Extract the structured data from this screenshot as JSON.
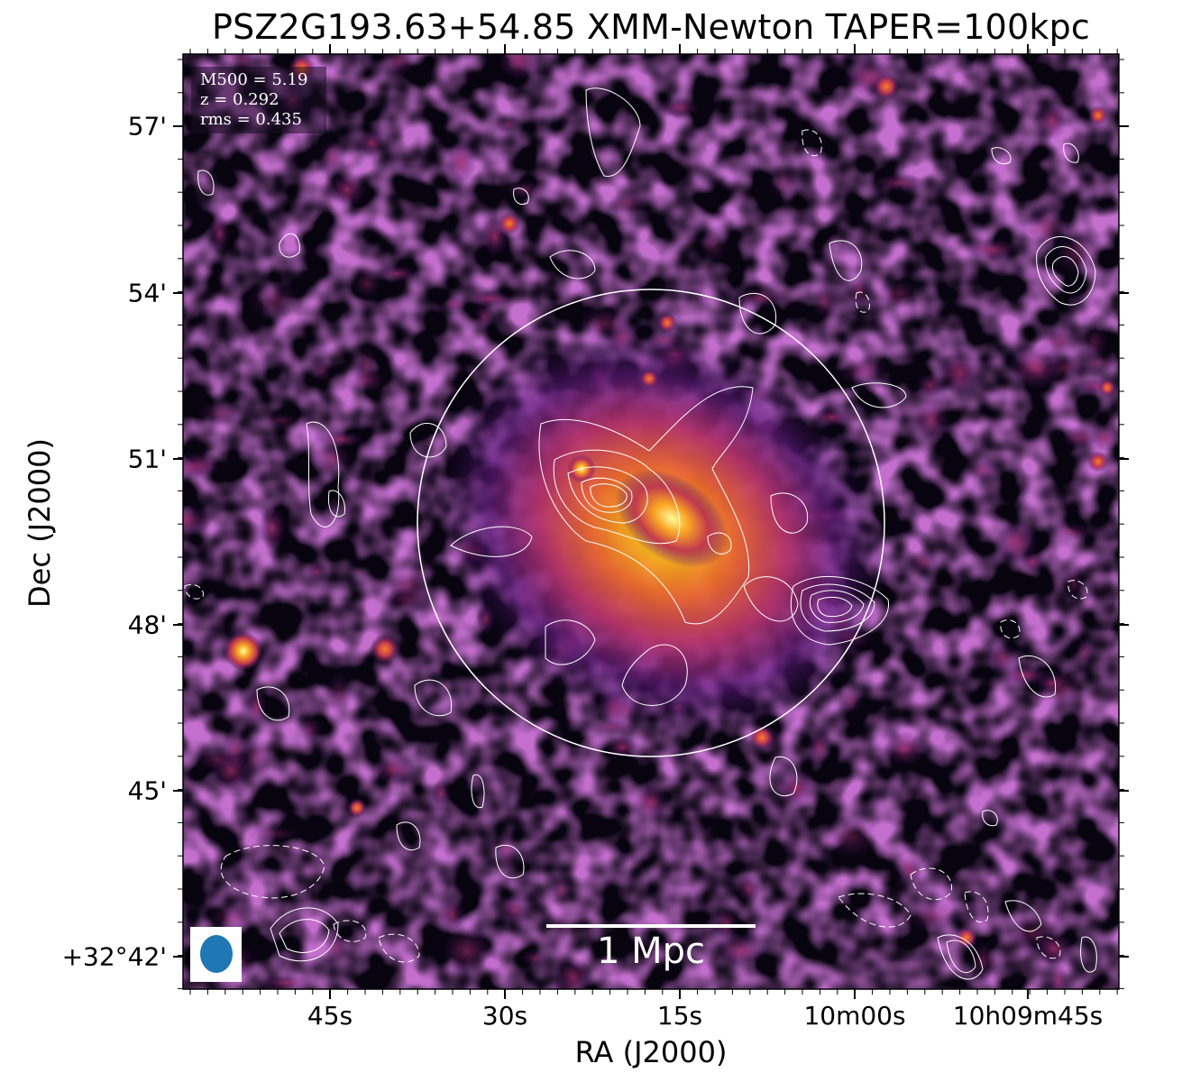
{
  "title": "PSZ2G193.63+54.85 XMM-Newton TAPER=100kpc",
  "axes": {
    "xlabel": "RA (J2000)",
    "ylabel": "Dec (J2000)",
    "ra_ticks": [
      "45s",
      "30s",
      "15s",
      "10m00s",
      "10h09m45s"
    ],
    "dec_ticks": [
      "57'",
      "54'",
      "51'",
      "48'",
      "45'",
      "+32°42'"
    ]
  },
  "info": {
    "mass": "M500 = 5.19",
    "redshift": "z = 0.292",
    "rms": "rms = 0.435"
  },
  "scalebar": {
    "label": "1 Mpc"
  },
  "beam": {
    "color": "#1f77b4"
  },
  "colors": {
    "colormap": "inferno",
    "contours": "#ffffff",
    "circle": "#ffffff"
  }
}
